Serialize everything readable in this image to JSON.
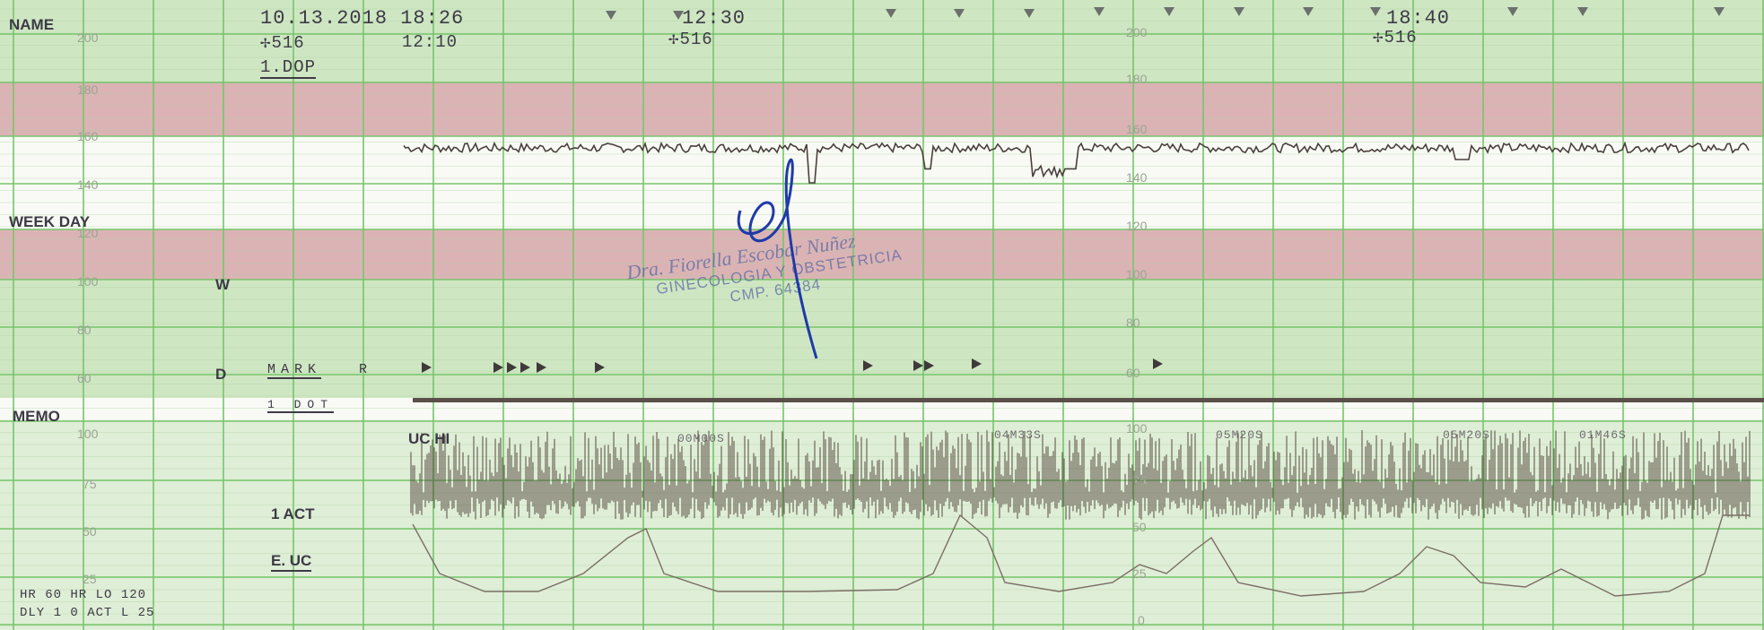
{
  "header": {
    "name_label": "NAME",
    "date_time": "10.13.2018  18:26",
    "probe_1": "516",
    "time_2": "12:10",
    "mode_label": "1.DOP",
    "time_3": "12:30",
    "probe_2": "516",
    "time_4": "18:40",
    "probe_3": "516"
  },
  "labels": {
    "week_day": "WEEK DAY",
    "w": "W",
    "d": "D",
    "mark": "MARK",
    "r": "R",
    "memo": "MEMO",
    "toco_label": "1 DOT",
    "uc_hi": "UC HI",
    "act": "1 ACT",
    "e_uc": "E. UC",
    "footer_1": "HR    60 HR LO 120",
    "footer_2": "DLY  1  0  ACT L 25"
  },
  "uc_timers": [
    "00M00S",
    "04M33S",
    "05M20S",
    "05M20S",
    "01M46S"
  ],
  "scales": {
    "fhr_left": [
      "200",
      "180",
      "160",
      "140",
      "120",
      "100",
      "80",
      "60"
    ],
    "fhr_right": [
      "200",
      "180",
      "160",
      "140",
      "120",
      "100",
      "80",
      "60"
    ],
    "toco_left": [
      "100",
      "75",
      "50",
      "25"
    ],
    "toco_right": [
      "100",
      "75",
      "50",
      "25",
      "0"
    ]
  },
  "stamp": {
    "name": "Dra. Fiorella Escobar Nuñez",
    "specialty": "GINECOLOGIA Y OBSTETRICIA",
    "license": "CMP. 64384"
  },
  "colors": {
    "paper_green": "#cfe6c3",
    "paper_white": "#f9faf5",
    "alarm_band": "#dcb3b5",
    "grid_line": "#76c56a",
    "trace": "#4a403c",
    "stamp_ink": "#5b6aa3",
    "signature_ink": "#1f3aa8"
  }
}
